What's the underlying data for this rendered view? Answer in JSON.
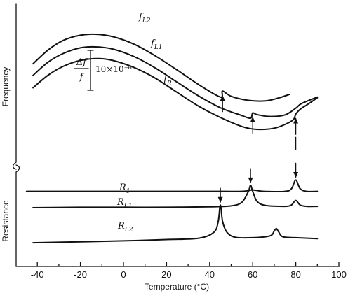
{
  "chart_data": {
    "type": "line",
    "xlabel": "Temperature (°C)",
    "ylabel_top": "Frequency",
    "ylabel_bottom": "Resistance",
    "xlim": [
      -45,
      100
    ],
    "x_ticks": [
      -40,
      -20,
      0,
      20,
      40,
      60,
      80,
      100
    ],
    "x_tick_labels": [
      "-40",
      "-20",
      "0",
      "20",
      "40",
      "60",
      "80",
      "100"
    ],
    "scale_bar": {
      "numerator": "Δf",
      "denominator": "f",
      "value": "10×10⁻⁶"
    },
    "frequency_series": [
      {
        "name": "f",
        "sub": "L2",
        "turnover_x": -13,
        "jump_x": 46,
        "x": [
          -42,
          -35,
          -28,
          -20,
          -13,
          -5,
          5,
          15,
          25,
          35,
          45,
          46,
          50,
          58,
          66,
          72,
          77
        ],
        "y": [
          17.6,
          23.4,
          27.4,
          29.6,
          30.0,
          29.0,
          25.8,
          20.8,
          14.9,
          8.8,
          3.6,
          6.1,
          3.9,
          2.2,
          2.0,
          3.2,
          4.7
        ]
      },
      {
        "name": "f",
        "sub": "L1",
        "turnover_x": -13,
        "jump_x": 60,
        "x": [
          -42,
          -35,
          -28,
          -20,
          -13,
          -5,
          5,
          15,
          25,
          35,
          45,
          55,
          59,
          60,
          62,
          68,
          75,
          80,
          82,
          85,
          90
        ],
        "y": [
          12.7,
          18.3,
          21.9,
          24.3,
          24.7,
          23.8,
          20.6,
          15.7,
          9.8,
          4.0,
          -0.9,
          -4.2,
          -5.3,
          -3.1,
          -3.8,
          -4.6,
          -3.9,
          -1.1,
          0.5,
          1.8,
          3.6
        ]
      },
      {
        "name": "f",
        "sub": "R",
        "turnover_x": -12,
        "jump_x": 80,
        "x": [
          -42,
          -35,
          -28,
          -20,
          -12,
          -5,
          5,
          15,
          25,
          35,
          45,
          55,
          62,
          70,
          76,
          79,
          80,
          82,
          86,
          90
        ],
        "y": [
          7.5,
          12.8,
          16.5,
          19.0,
          19.8,
          19.0,
          16.0,
          11.4,
          5.5,
          -0.3,
          -5.0,
          -8.8,
          -10.0,
          -9.5,
          -7.5,
          -5.8,
          -3.6,
          -1.6,
          0.8,
          3.3
        ]
      }
    ],
    "resistance_series": [
      {
        "name": "R",
        "sub": "1",
        "peak_x": 80,
        "x": [
          -45,
          -20,
          0,
          20,
          40,
          55,
          60,
          65,
          75,
          78,
          80,
          82,
          85,
          90
        ],
        "y": [
          3.6,
          3.6,
          3.6,
          3.6,
          3.6,
          3.6,
          3.9,
          3.6,
          3.6,
          4.2,
          6.1,
          4.2,
          3.6,
          3.6
        ]
      },
      {
        "name": "R",
        "sub": "L1",
        "peak_x": 59,
        "x": [
          -42,
          -20,
          0,
          20,
          40,
          50,
          55,
          58,
          59,
          60,
          62,
          66,
          75,
          78,
          80,
          82,
          85,
          90
        ],
        "y": [
          0.0,
          0.1,
          0.1,
          0.1,
          0.2,
          0.4,
          1.2,
          3.6,
          4.9,
          3.6,
          1.4,
          0.5,
          0.3,
          0.6,
          1.6,
          0.6,
          0.3,
          0.3
        ]
      },
      {
        "name": "R",
        "sub": "L2",
        "peak_x": 45,
        "x": [
          -42,
          -20,
          0,
          20,
          35,
          42,
          44,
          45,
          46,
          48,
          52,
          60,
          68,
          70,
          71,
          72,
          74,
          80,
          90
        ],
        "y": [
          -7.7,
          -7.5,
          -7.3,
          -7.0,
          -6.7,
          -5.4,
          -3.0,
          0.6,
          -3.0,
          -5.4,
          -6.5,
          -6.6,
          -6.2,
          -5.1,
          -4.6,
          -5.3,
          -6.4,
          -6.6,
          -6.8
        ]
      }
    ],
    "grid": false,
    "legend": "none"
  }
}
